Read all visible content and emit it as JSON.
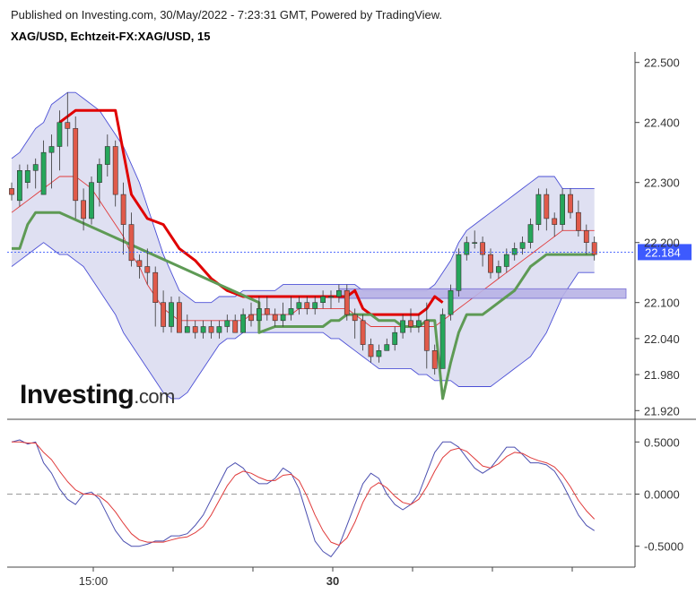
{
  "header": {
    "published": "Published on Investing.com, 30/May/2022 - 7:23:31 GMT, Powered by TradingView.",
    "symbol": "XAG/USD, Echtzeit-FX:XAG/USD, 15"
  },
  "logo": {
    "main": "Investing",
    "suffix": ".com"
  },
  "colors": {
    "bull": "#26a65b",
    "bear": "#e05a4a",
    "band_fill": "#d9dbf0",
    "band_line": "#4b4fd6",
    "mid_line": "#e03a3a",
    "psar_red": "#e00000",
    "psar_green": "#5e9a55",
    "zone": "#b9b3e6",
    "osc_blue": "#4b4fb0",
    "osc_red": "#e03a3a",
    "price_tag": "#3d5afe"
  },
  "chart_data": [
    {
      "type": "candlestick",
      "title": "XAG/USD, Echtzeit-FX:XAG/USD, 15",
      "ylim": [
        21.91,
        22.51
      ],
      "y_ticks": [
        "22.500",
        "22.400",
        "22.300",
        "22.200",
        "22.100",
        "22.040",
        "21.980",
        "21.920"
      ],
      "x_ticks": [
        {
          "bar": 10,
          "label": "15:00"
        },
        {
          "bar": 20,
          "label": ""
        },
        {
          "bar": 30,
          "label": ""
        },
        {
          "bar": 40,
          "label": "30"
        },
        {
          "bar": 50,
          "label": ""
        },
        {
          "bar": 60,
          "label": ""
        },
        {
          "bar": 70,
          "label": ""
        }
      ],
      "last_price": "22.184",
      "last_price_value": 22.184,
      "candles": [
        [
          22.29,
          22.28,
          22.3,
          22.27
        ],
        [
          22.27,
          22.32,
          22.33,
          22.26
        ],
        [
          22.3,
          22.32,
          22.33,
          22.29
        ],
        [
          22.32,
          22.33,
          22.34,
          22.29
        ],
        [
          22.28,
          22.35,
          22.37,
          22.28
        ],
        [
          22.35,
          22.36,
          22.38,
          22.29
        ],
        [
          22.36,
          22.4,
          22.42,
          22.32
        ],
        [
          22.4,
          22.39,
          22.45,
          22.36
        ],
        [
          22.39,
          22.27,
          22.41,
          22.24
        ],
        [
          22.27,
          22.24,
          22.29,
          22.22
        ],
        [
          22.24,
          22.3,
          22.31,
          22.23
        ],
        [
          22.3,
          22.33,
          22.34,
          22.26
        ],
        [
          22.33,
          22.36,
          22.38,
          22.31
        ],
        [
          22.36,
          22.28,
          22.37,
          22.26
        ],
        [
          22.28,
          22.23,
          22.3,
          22.18
        ],
        [
          22.23,
          22.17,
          22.25,
          22.16
        ],
        [
          22.17,
          22.16,
          22.18,
          22.14
        ],
        [
          22.16,
          22.15,
          22.19,
          22.13
        ],
        [
          22.15,
          22.1,
          22.16,
          22.06
        ],
        [
          22.1,
          22.06,
          22.12,
          22.05
        ],
        [
          22.06,
          22.1,
          22.11,
          22.05
        ],
        [
          22.1,
          22.05,
          22.11,
          22.05
        ],
        [
          22.05,
          22.06,
          22.08,
          22.05
        ],
        [
          22.06,
          22.05,
          22.07,
          22.04
        ],
        [
          22.05,
          22.06,
          22.07,
          22.04
        ],
        [
          22.06,
          22.05,
          22.07,
          22.04
        ],
        [
          22.05,
          22.06,
          22.07,
          22.04
        ],
        [
          22.06,
          22.07,
          22.08,
          22.05
        ],
        [
          22.07,
          22.05,
          22.08,
          22.05
        ],
        [
          22.05,
          22.08,
          22.09,
          22.05
        ],
        [
          22.08,
          22.07,
          22.1,
          22.06
        ],
        [
          22.07,
          22.09,
          22.11,
          22.07
        ],
        [
          22.09,
          22.08,
          22.11,
          22.07
        ],
        [
          22.08,
          22.07,
          22.09,
          22.06
        ],
        [
          22.07,
          22.08,
          22.1,
          22.06
        ],
        [
          22.08,
          22.09,
          22.11,
          22.07
        ],
        [
          22.09,
          22.1,
          22.11,
          22.08
        ],
        [
          22.1,
          22.09,
          22.11,
          22.08
        ],
        [
          22.09,
          22.1,
          22.11,
          22.08
        ],
        [
          22.1,
          22.11,
          22.12,
          22.09
        ],
        [
          22.11,
          22.11,
          22.12,
          22.09
        ],
        [
          22.11,
          22.12,
          22.13,
          22.1
        ],
        [
          22.12,
          22.08,
          22.13,
          22.07
        ],
        [
          22.08,
          22.07,
          22.09,
          22.04
        ],
        [
          22.07,
          22.03,
          22.08,
          22.02
        ],
        [
          22.03,
          22.01,
          22.04,
          22.0
        ],
        [
          22.01,
          22.02,
          22.03,
          22.0
        ],
        [
          22.02,
          22.03,
          22.04,
          22.02
        ],
        [
          22.03,
          22.05,
          22.06,
          22.02
        ],
        [
          22.05,
          22.07,
          22.08,
          22.04
        ],
        [
          22.07,
          22.06,
          22.09,
          22.05
        ],
        [
          22.06,
          22.07,
          22.08,
          22.05
        ],
        [
          22.07,
          22.02,
          22.1,
          21.99
        ],
        [
          22.02,
          21.99,
          22.03,
          21.98
        ],
        [
          21.99,
          22.08,
          22.09,
          21.99
        ],
        [
          22.08,
          22.12,
          22.13,
          22.07
        ],
        [
          22.12,
          22.18,
          22.19,
          22.11
        ],
        [
          22.18,
          22.2,
          22.21,
          22.17
        ],
        [
          22.2,
          22.2,
          22.22,
          22.19
        ],
        [
          22.2,
          22.18,
          22.21,
          22.16
        ],
        [
          22.18,
          22.15,
          22.19,
          22.14
        ],
        [
          22.15,
          22.16,
          22.17,
          22.14
        ],
        [
          22.16,
          22.18,
          22.19,
          22.15
        ],
        [
          22.18,
          22.19,
          22.2,
          22.17
        ],
        [
          22.19,
          22.2,
          22.21,
          22.18
        ],
        [
          22.2,
          22.23,
          22.24,
          22.19
        ],
        [
          22.23,
          22.28,
          22.29,
          22.22
        ],
        [
          22.28,
          22.24,
          22.29,
          22.22
        ],
        [
          22.24,
          22.23,
          22.25,
          22.21
        ],
        [
          22.23,
          22.28,
          22.29,
          22.22
        ],
        [
          22.28,
          22.25,
          22.29,
          22.24
        ],
        [
          22.25,
          22.22,
          22.27,
          22.21
        ],
        [
          22.22,
          22.2,
          22.23,
          22.18
        ],
        [
          22.2,
          22.18,
          22.21,
          22.17
        ]
      ],
      "bollinger_upper": [
        22.34,
        22.35,
        22.37,
        22.39,
        22.4,
        22.43,
        22.44,
        22.45,
        22.45,
        22.44,
        22.43,
        22.42,
        22.4,
        22.38,
        22.36,
        22.33,
        22.3,
        22.26,
        22.22,
        22.18,
        22.15,
        22.12,
        22.11,
        22.1,
        22.1,
        22.1,
        22.11,
        22.11,
        22.11,
        22.12,
        22.12,
        22.12,
        22.12,
        22.12,
        22.13,
        22.13,
        22.13,
        22.13,
        22.13,
        22.13,
        22.13,
        22.13,
        22.13,
        22.13,
        22.12,
        22.12,
        22.12,
        22.12,
        22.12,
        22.12,
        22.12,
        22.12,
        22.12,
        22.13,
        22.15,
        22.17,
        22.2,
        22.22,
        22.23,
        22.24,
        22.25,
        22.26,
        22.27,
        22.28,
        22.29,
        22.3,
        22.31,
        22.31,
        22.31,
        22.29,
        22.29,
        22.29,
        22.29,
        22.29
      ],
      "bollinger_lower": [
        22.16,
        22.17,
        22.18,
        22.19,
        22.2,
        22.19,
        22.18,
        22.18,
        22.17,
        22.16,
        22.14,
        22.12,
        22.1,
        22.08,
        22.05,
        22.03,
        22.01,
        21.99,
        21.97,
        21.95,
        21.94,
        21.94,
        21.95,
        21.97,
        21.99,
        22.01,
        22.03,
        22.04,
        22.04,
        22.05,
        22.05,
        22.05,
        22.05,
        22.05,
        22.05,
        22.05,
        22.05,
        22.05,
        22.05,
        22.05,
        22.04,
        22.04,
        22.03,
        22.02,
        22.01,
        22.0,
        21.99,
        21.99,
        21.99,
        21.99,
        21.99,
        21.98,
        21.98,
        21.97,
        21.97,
        21.97,
        21.96,
        21.96,
        21.96,
        21.96,
        21.96,
        21.97,
        21.98,
        21.99,
        22.0,
        22.01,
        22.03,
        22.05,
        22.08,
        22.11,
        22.13,
        22.15,
        22.15,
        22.15
      ],
      "bollinger_mid": [
        22.25,
        22.26,
        22.27,
        22.28,
        22.29,
        22.3,
        22.31,
        22.31,
        22.31,
        22.3,
        22.29,
        22.27,
        22.25,
        22.23,
        22.21,
        22.18,
        22.16,
        22.13,
        22.11,
        22.09,
        22.08,
        22.07,
        22.07,
        22.07,
        22.07,
        22.07,
        22.07,
        22.07,
        22.07,
        22.07,
        22.08,
        22.08,
        22.08,
        22.08,
        22.08,
        22.08,
        22.09,
        22.09,
        22.09,
        22.09,
        22.09,
        22.09,
        22.09,
        22.08,
        22.07,
        22.06,
        22.06,
        22.06,
        22.06,
        22.06,
        22.06,
        22.06,
        22.06,
        22.06,
        22.07,
        22.08,
        22.09,
        22.1,
        22.11,
        22.12,
        22.13,
        22.14,
        22.15,
        22.16,
        22.17,
        22.18,
        22.19,
        22.2,
        22.21,
        22.22,
        22.22,
        22.22,
        22.22,
        22.22
      ],
      "psar_red": [
        [
          6,
          22.4
        ],
        [
          8,
          22.42
        ],
        [
          13,
          22.42
        ],
        [
          15,
          22.28
        ],
        [
          17,
          22.24
        ],
        [
          19,
          22.23
        ],
        [
          21,
          22.19
        ],
        [
          23,
          22.17
        ],
        [
          25,
          22.14
        ],
        [
          27,
          22.12
        ],
        [
          29,
          22.11
        ],
        [
          31,
          22.11
        ],
        [
          42,
          22.11
        ],
        [
          43,
          22.12
        ],
        [
          44,
          22.09
        ],
        [
          45,
          22.08
        ],
        [
          46,
          22.08
        ],
        [
          48,
          22.08
        ],
        [
          49,
          22.08
        ],
        [
          50,
          22.08
        ],
        [
          51,
          22.08
        ],
        [
          52,
          22.09
        ],
        [
          53,
          22.11
        ],
        [
          54,
          22.1
        ]
      ],
      "psar_green": [
        [
          0,
          22.19
        ],
        [
          1,
          22.19
        ],
        [
          2,
          22.23
        ],
        [
          3,
          22.25
        ],
        [
          4,
          22.25
        ],
        [
          5,
          22.25
        ],
        [
          6,
          22.25
        ],
        [
          31,
          22.1
        ],
        [
          31,
          22.05
        ],
        [
          33,
          22.06
        ],
        [
          35,
          22.06
        ],
        [
          38,
          22.06
        ],
        [
          39,
          22.06
        ],
        [
          40,
          22.07
        ],
        [
          41,
          22.07
        ],
        [
          42,
          22.08
        ],
        [
          43,
          22.08
        ],
        [
          44,
          22.08
        ],
        [
          45,
          22.08
        ],
        [
          46,
          22.07
        ],
        [
          47,
          22.07
        ],
        [
          48,
          22.07
        ],
        [
          49,
          22.06
        ],
        [
          50,
          22.06
        ],
        [
          51,
          22.06
        ],
        [
          52,
          22.07
        ],
        [
          53,
          22.07
        ],
        [
          54,
          21.94
        ],
        [
          55,
          22.0
        ],
        [
          56,
          22.05
        ],
        [
          57,
          22.08
        ],
        [
          58,
          22.08
        ],
        [
          59,
          22.08
        ],
        [
          60,
          22.09
        ],
        [
          61,
          22.1
        ],
        [
          62,
          22.11
        ],
        [
          63,
          22.12
        ],
        [
          64,
          22.14
        ],
        [
          65,
          22.16
        ],
        [
          66,
          22.17
        ],
        [
          67,
          22.18
        ],
        [
          68,
          22.18
        ],
        [
          69,
          22.18
        ],
        [
          70,
          22.18
        ],
        [
          71,
          22.18
        ],
        [
          72,
          22.18
        ],
        [
          73,
          22.18
        ]
      ],
      "zone": {
        "top": 22.12,
        "bottom": 22.11,
        "from_bar": 41,
        "to_bar": 73
      }
    },
    {
      "type": "line",
      "ylim": [
        -0.7,
        0.7
      ],
      "y_ticks": [
        "0.5000",
        "0.0000",
        "-0.5000"
      ],
      "series": [
        {
          "values": [
            0.5,
            0.52,
            0.48,
            0.5,
            0.3,
            0.2,
            0.05,
            -0.05,
            -0.1,
            0.0,
            0.02,
            -0.05,
            -0.2,
            -0.35,
            -0.45,
            -0.5,
            -0.5,
            -0.48,
            -0.45,
            -0.45,
            -0.4,
            -0.4,
            -0.38,
            -0.3,
            -0.2,
            -0.05,
            0.1,
            0.25,
            0.3,
            0.25,
            0.15,
            0.1,
            0.1,
            0.15,
            0.25,
            0.2,
            0.05,
            -0.2,
            -0.45,
            -0.55,
            -0.6,
            -0.5,
            -0.3,
            -0.1,
            0.1,
            0.2,
            0.15,
            0.0,
            -0.1,
            -0.15,
            -0.1,
            0.0,
            0.2,
            0.4,
            0.5,
            0.5,
            0.45,
            0.35,
            0.25,
            0.2,
            0.25,
            0.35,
            0.45,
            0.45,
            0.38,
            0.3,
            0.3,
            0.28,
            0.22,
            0.1,
            -0.05,
            -0.2,
            -0.3,
            -0.35
          ]
        },
        {
          "values": [
            0.5,
            0.5,
            0.49,
            0.49,
            0.4,
            0.33,
            0.22,
            0.12,
            0.04,
            0.0,
            0.0,
            -0.02,
            -0.08,
            -0.17,
            -0.28,
            -0.38,
            -0.44,
            -0.46,
            -0.46,
            -0.46,
            -0.44,
            -0.42,
            -0.41,
            -0.37,
            -0.31,
            -0.2,
            -0.06,
            0.08,
            0.18,
            0.22,
            0.2,
            0.16,
            0.13,
            0.13,
            0.18,
            0.19,
            0.13,
            -0.02,
            -0.2,
            -0.35,
            -0.46,
            -0.49,
            -0.42,
            -0.27,
            -0.08,
            0.06,
            0.11,
            0.06,
            -0.02,
            -0.08,
            -0.1,
            -0.05,
            0.07,
            0.22,
            0.35,
            0.42,
            0.44,
            0.41,
            0.34,
            0.27,
            0.25,
            0.29,
            0.36,
            0.4,
            0.39,
            0.35,
            0.32,
            0.3,
            0.26,
            0.18,
            0.07,
            -0.06,
            -0.16,
            -0.24
          ]
        }
      ]
    }
  ]
}
